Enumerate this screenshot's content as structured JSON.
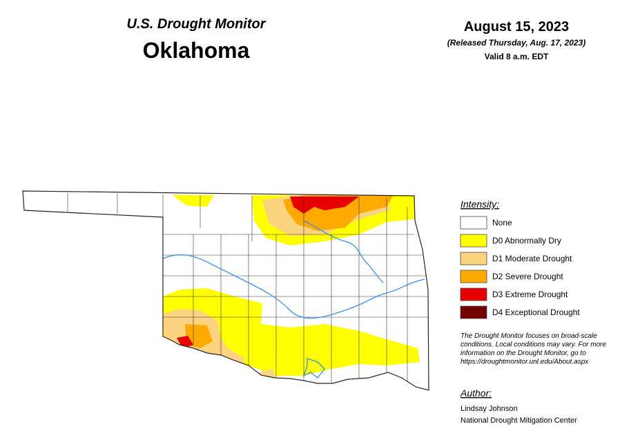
{
  "header": {
    "title": "U.S. Drought Monitor",
    "state": "Oklahoma",
    "date": "August 15, 2023",
    "released": "(Released Thursday, Aug. 17, 2023)",
    "valid": "Valid 8 a.m. EDT"
  },
  "legend": {
    "title": "Intensity:",
    "items": [
      {
        "label": "None",
        "color": "#ffffff"
      },
      {
        "label": "D0 Abnormally Dry",
        "color": "#ffff00"
      },
      {
        "label": "D1 Moderate Drought",
        "color": "#fcd37f"
      },
      {
        "label": "D2 Severe Drought",
        "color": "#ffaa00"
      },
      {
        "label": "D3 Extreme Drought",
        "color": "#e60000"
      },
      {
        "label": "D4 Exceptional Drought",
        "color": "#730000"
      }
    ]
  },
  "note": [
    "The Drought Monitor focuses on broad-scale",
    "conditions. Local conditions may vary. For more",
    "information on the Drought Monitor, go to",
    "https://droughtmonitor.unl.edu/About.aspx"
  ],
  "author": {
    "title": "Author:",
    "lines": [
      "Lindsay Johnson",
      "National Drought Mitigation Center"
    ]
  }
}
